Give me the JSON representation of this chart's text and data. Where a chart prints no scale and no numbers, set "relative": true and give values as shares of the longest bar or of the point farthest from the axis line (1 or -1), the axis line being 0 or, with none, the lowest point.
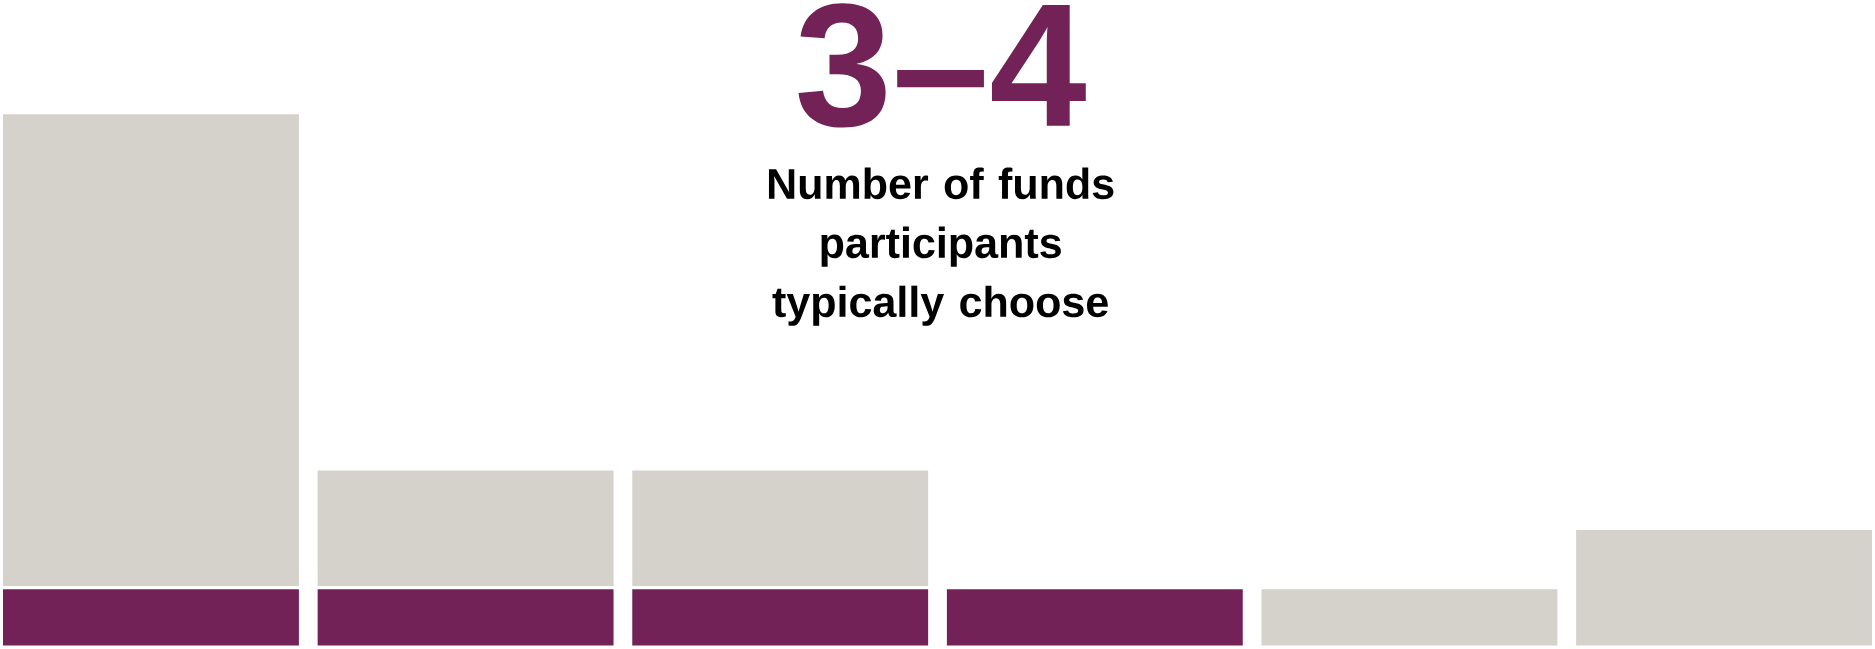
{
  "chart_data": {
    "type": "bar",
    "title": "3–4",
    "subtitle": "Number of funds participants typically choose",
    "categories": [
      null,
      null,
      null,
      null,
      null,
      null
    ],
    "stacked": true,
    "relative": true,
    "series": [
      {
        "color": "#722257",
        "values": [
          0.111,
          0.111,
          0.111,
          0.111,
          0,
          0
        ]
      },
      {
        "color": "#d5d1cb",
        "values": [
          0.889,
          0.222,
          0.222,
          0,
          0.111,
          0.222
        ]
      }
    ]
  }
}
